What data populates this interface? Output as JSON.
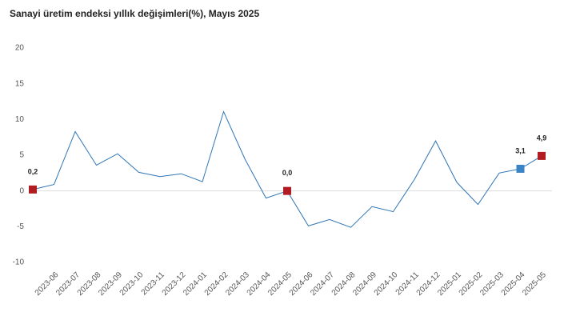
{
  "chart_data": {
    "type": "line",
    "title": "Sanayi üretim endeksi yıllık değişimleri(%), Mayıs 2025",
    "categories": [
      null,
      "2023-06",
      "2023-07",
      "2023-08",
      "2023-09",
      "2023-10",
      "2023-11",
      "2023-12",
      "2024-01",
      "2024-02",
      "2024-03",
      "2024-04",
      "2024-05",
      "2024-06",
      "2024-07",
      "2024-08",
      "2024-09",
      "2024-10",
      "2024-11",
      "2024-12",
      "2025-01",
      "2025-02",
      "2025-03",
      "2025-04",
      "2025-05"
    ],
    "series": [
      {
        "color": "#2e75b6",
        "values": [
          0.2,
          0.9,
          8.3,
          3.6,
          5.2,
          2.6,
          2.0,
          2.4,
          1.3,
          11.1,
          4.5,
          -1.0,
          0.0,
          -4.9,
          -4.0,
          -5.1,
          -2.2,
          -2.9,
          1.6,
          7.0,
          1.2,
          -1.9,
          2.5,
          3.1,
          4.9
        ],
        "value_labels": [
          "0,2",
          null,
          null,
          null,
          null,
          null,
          null,
          null,
          null,
          null,
          null,
          null,
          "0,0",
          null,
          null,
          null,
          null,
          null,
          null,
          null,
          null,
          null,
          null,
          "3,1",
          "4,9"
        ],
        "marker_colors": [
          "#b01c21",
          null,
          null,
          null,
          null,
          null,
          null,
          null,
          null,
          null,
          null,
          null,
          "#b01c21",
          null,
          null,
          null,
          null,
          null,
          null,
          null,
          null,
          null,
          null,
          "#3a83c4",
          "#b01c21"
        ]
      }
    ],
    "ylim": [
      -10,
      20
    ],
    "yticks": [
      -10,
      -5,
      0,
      5,
      10,
      15,
      20
    ]
  }
}
